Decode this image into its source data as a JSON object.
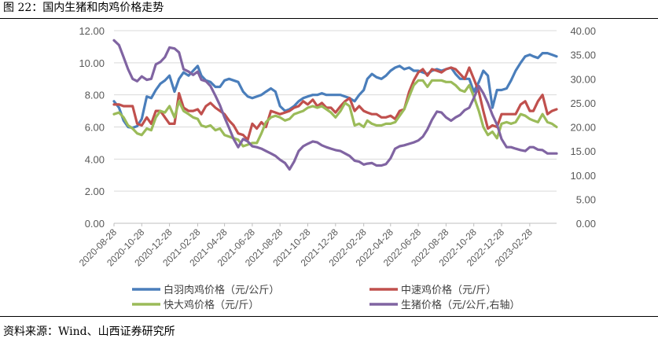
{
  "figure_title": "图 22：国内生猪和肉鸡价格走势",
  "source": "资料来源：Wind、山西证券研究所",
  "chart_data": {
    "type": "line",
    "y_left": {
      "ticks": [
        "12.00",
        "10.00",
        "8.00",
        "6.00",
        "4.00",
        "2.00",
        "0.00"
      ],
      "ylim": [
        0,
        12
      ]
    },
    "y_right": {
      "ticks": [
        "40.00",
        "35.00",
        "30.00",
        "25.00",
        "20.00",
        "15.00",
        "10.00",
        "5.00",
        "0.00"
      ],
      "ylim": [
        0,
        40
      ]
    },
    "x_range": [
      "2020-08-28",
      "2023-04-28"
    ],
    "x_tick_labels": [
      "2020-08-28",
      "2020-10-28",
      "2020-12-28",
      "2021-02-28",
      "2021-04-28",
      "2021-06-28",
      "2021-08-28",
      "2021-10-28",
      "2021-12-28",
      "2022-02-28",
      "2022-04-28",
      "2022-06-28",
      "2022-08-28",
      "2022-10-28",
      "2022-12-28",
      "2023-02-28"
    ],
    "series": [
      {
        "name": "白羽肉鸡价格（元/公斤）",
        "color": "#4a7ebb",
        "axis": "left",
        "x": [
          "2020-08-28",
          "2020-09-08",
          "2020-09-18",
          "2020-09-28",
          "2020-10-08",
          "2020-10-18",
          "2020-10-28",
          "2020-11-08",
          "2020-11-18",
          "2020-11-28",
          "2020-12-08",
          "2020-12-18",
          "2020-12-28",
          "2021-01-08",
          "2021-01-18",
          "2021-01-28",
          "2021-02-08",
          "2021-02-18",
          "2021-02-28",
          "2021-03-08",
          "2021-03-18",
          "2021-03-28",
          "2021-04-08",
          "2021-04-18",
          "2021-04-28",
          "2021-05-08",
          "2021-05-18",
          "2021-05-28",
          "2021-06-08",
          "2021-06-18",
          "2021-06-28",
          "2021-07-08",
          "2021-07-18",
          "2021-07-28",
          "2021-08-08",
          "2021-08-18",
          "2021-08-28",
          "2021-09-08",
          "2021-09-18",
          "2021-09-28",
          "2021-10-08",
          "2021-10-18",
          "2021-10-28",
          "2021-11-08",
          "2021-11-18",
          "2021-11-28",
          "2021-12-08",
          "2021-12-18",
          "2021-12-28",
          "2022-01-08",
          "2022-01-18",
          "2022-01-28",
          "2022-02-08",
          "2022-02-18",
          "2022-02-28",
          "2022-03-08",
          "2022-03-18",
          "2022-03-28",
          "2022-04-08",
          "2022-04-18",
          "2022-04-28",
          "2022-05-08",
          "2022-05-18",
          "2022-05-28",
          "2022-06-08",
          "2022-06-18",
          "2022-06-28",
          "2022-07-08",
          "2022-07-18",
          "2022-07-28",
          "2022-08-08",
          "2022-08-18",
          "2022-08-28",
          "2022-09-08",
          "2022-09-18",
          "2022-09-28",
          "2022-10-08",
          "2022-10-18",
          "2022-10-28",
          "2022-11-08",
          "2022-11-18",
          "2022-11-28",
          "2022-12-08",
          "2022-12-18",
          "2022-12-28",
          "2023-01-08",
          "2023-01-18",
          "2023-01-28",
          "2023-02-08",
          "2023-02-18",
          "2023-02-28",
          "2023-03-08",
          "2023-03-18",
          "2023-03-28",
          "2023-04-08",
          "2023-04-18",
          "2023-04-28"
        ],
        "values": [
          7.6,
          7.2,
          6.4,
          6.0,
          5.95,
          6.05,
          6.5,
          7.9,
          7.8,
          8.3,
          8.7,
          8.9,
          9.2,
          8.2,
          9.0,
          9.4,
          9.2,
          9.5,
          9.8,
          9.2,
          8.9,
          8.8,
          8.5,
          8.5,
          8.9,
          9.0,
          8.9,
          8.8,
          8.2,
          7.9,
          7.8,
          7.9,
          8.0,
          8.2,
          8.4,
          8.2,
          7.3,
          7.0,
          7.1,
          7.3,
          7.6,
          7.8,
          7.9,
          8.0,
          8.0,
          8.1,
          8.0,
          8.0,
          8.0,
          8.0,
          7.9,
          7.8,
          7.6,
          8.0,
          8.3,
          9.0,
          9.3,
          9.1,
          9.0,
          9.2,
          9.5,
          9.7,
          9.8,
          9.6,
          9.7,
          9.5,
          9.5,
          9.4,
          9.3,
          9.5,
          9.6,
          9.5,
          9.6,
          9.7,
          9.3,
          9.0,
          9.0,
          9.0,
          8.2,
          8.8,
          9.5,
          9.2,
          7.2,
          8.3,
          8.3,
          8.4,
          8.9,
          9.5,
          10.0,
          10.4,
          10.5,
          10.4,
          10.3,
          10.6,
          10.6,
          10.5,
          10.4
        ]
      },
      {
        "name": "中速鸡价格（元/斤）",
        "color": "#c0504d",
        "axis": "left",
        "x": [
          "2020-08-28",
          "2020-09-08",
          "2020-09-18",
          "2020-09-28",
          "2020-10-08",
          "2020-10-18",
          "2020-10-28",
          "2020-11-08",
          "2020-11-18",
          "2020-11-28",
          "2020-12-08",
          "2020-12-18",
          "2020-12-28",
          "2021-01-08",
          "2021-01-18",
          "2021-01-28",
          "2021-02-08",
          "2021-02-18",
          "2021-02-28",
          "2021-03-08",
          "2021-03-18",
          "2021-03-28",
          "2021-04-08",
          "2021-04-18",
          "2021-04-28",
          "2021-05-08",
          "2021-05-18",
          "2021-05-28",
          "2021-06-08",
          "2021-06-18",
          "2021-06-28",
          "2021-07-08",
          "2021-07-18",
          "2021-07-28",
          "2021-08-08",
          "2021-08-18",
          "2021-08-28",
          "2021-09-08",
          "2021-09-18",
          "2021-09-28",
          "2021-10-08",
          "2021-10-18",
          "2021-10-28",
          "2021-11-08",
          "2021-11-18",
          "2021-11-28",
          "2021-12-08",
          "2021-12-18",
          "2021-12-28",
          "2022-01-08",
          "2022-01-18",
          "2022-01-28",
          "2022-02-08",
          "2022-02-18",
          "2022-02-28",
          "2022-03-08",
          "2022-03-18",
          "2022-03-28",
          "2022-04-08",
          "2022-04-18",
          "2022-04-28",
          "2022-05-08",
          "2022-05-18",
          "2022-05-28",
          "2022-06-08",
          "2022-06-18",
          "2022-06-28",
          "2022-07-08",
          "2022-07-18",
          "2022-07-28",
          "2022-08-08",
          "2022-08-18",
          "2022-08-28",
          "2022-09-08",
          "2022-09-18",
          "2022-09-28",
          "2022-10-08",
          "2022-10-18",
          "2022-10-28",
          "2022-11-08",
          "2022-11-18",
          "2022-11-28",
          "2022-12-08",
          "2022-12-18",
          "2022-12-28",
          "2023-01-08",
          "2023-01-18",
          "2023-01-28",
          "2023-02-08",
          "2023-02-18",
          "2023-02-28",
          "2023-03-08",
          "2023-03-18",
          "2023-03-28",
          "2023-04-08",
          "2023-04-18",
          "2023-04-28"
        ],
        "values": [
          7.4,
          7.4,
          7.3,
          7.3,
          7.3,
          6.2,
          6.1,
          6.6,
          6.2,
          7.0,
          7.0,
          6.6,
          6.2,
          6.2,
          8.1,
          7.2,
          7.0,
          7.0,
          7.1,
          6.8,
          7.3,
          7.5,
          7.2,
          7.0,
          6.8,
          6.4,
          6.1,
          5.6,
          5.5,
          5.2,
          6.2,
          5.9,
          6.3,
          6.0,
          7.0,
          6.9,
          6.8,
          6.9,
          7.0,
          7.2,
          7.3,
          7.6,
          7.4,
          7.7,
          7.3,
          7.5,
          7.2,
          7.2,
          6.9,
          7.3,
          7.6,
          7.8,
          7.0,
          7.3,
          7.0,
          6.9,
          6.8,
          6.8,
          6.6,
          6.6,
          6.7,
          6.5,
          7.0,
          7.1,
          8.2,
          8.9,
          9.4,
          9.6,
          9.2,
          9.6,
          9.5,
          9.4,
          9.6,
          9.7,
          9.6,
          9.3,
          9.0,
          9.7,
          9.0,
          8.2,
          7.0,
          5.9,
          6.1,
          6.0,
          6.8,
          6.8,
          6.8,
          6.8,
          7.4,
          7.6,
          7.0,
          7.0,
          7.6,
          8.0,
          6.8,
          7.0,
          7.1
        ]
      },
      {
        "name": "快大鸡价格（元/斤）",
        "color": "#9bbb59",
        "axis": "left",
        "x": [
          "2020-08-28",
          "2020-09-08",
          "2020-09-18",
          "2020-09-28",
          "2020-10-08",
          "2020-10-18",
          "2020-10-28",
          "2020-11-08",
          "2020-11-18",
          "2020-11-28",
          "2020-12-08",
          "2020-12-18",
          "2020-12-28",
          "2021-01-08",
          "2021-01-18",
          "2021-01-28",
          "2021-02-08",
          "2021-02-18",
          "2021-02-28",
          "2021-03-08",
          "2021-03-18",
          "2021-03-28",
          "2021-04-08",
          "2021-04-18",
          "2021-04-28",
          "2021-05-08",
          "2021-05-18",
          "2021-05-28",
          "2021-06-08",
          "2021-06-18",
          "2021-06-28",
          "2021-07-08",
          "2021-07-18",
          "2021-07-28",
          "2021-08-08",
          "2021-08-18",
          "2021-08-28",
          "2021-09-08",
          "2021-09-18",
          "2021-09-28",
          "2021-10-08",
          "2021-10-18",
          "2021-10-28",
          "2021-11-08",
          "2021-11-18",
          "2021-11-28",
          "2021-12-08",
          "2021-12-18",
          "2021-12-28",
          "2022-01-08",
          "2022-01-18",
          "2022-01-28",
          "2022-02-08",
          "2022-02-18",
          "2022-02-28",
          "2022-03-08",
          "2022-03-18",
          "2022-03-28",
          "2022-04-08",
          "2022-04-18",
          "2022-04-28",
          "2022-05-08",
          "2022-05-18",
          "2022-05-28",
          "2022-06-08",
          "2022-06-18",
          "2022-06-28",
          "2022-07-08",
          "2022-07-18",
          "2022-07-28",
          "2022-08-08",
          "2022-08-18",
          "2022-08-28",
          "2022-09-08",
          "2022-09-18",
          "2022-09-28",
          "2022-10-08",
          "2022-10-18",
          "2022-10-28",
          "2022-11-08",
          "2022-11-18",
          "2022-11-28",
          "2022-12-08",
          "2022-12-18",
          "2022-12-28",
          "2023-01-08",
          "2023-01-18",
          "2023-01-28",
          "2023-02-08",
          "2023-02-18",
          "2023-02-28",
          "2023-03-08",
          "2023-03-18",
          "2023-03-28",
          "2023-04-08",
          "2023-04-18",
          "2023-04-28"
        ],
        "values": [
          6.8,
          6.9,
          6.6,
          6.1,
          5.9,
          5.6,
          5.5,
          5.9,
          5.8,
          6.6,
          7.0,
          6.9,
          7.3,
          6.6,
          7.6,
          7.0,
          6.8,
          6.6,
          6.5,
          6.1,
          6.0,
          6.1,
          5.8,
          5.9,
          5.5,
          5.4,
          5.3,
          5.2,
          4.8,
          4.9,
          5.0,
          5.0,
          5.6,
          6.3,
          6.6,
          6.7,
          6.6,
          6.4,
          6.5,
          6.8,
          6.9,
          7.0,
          7.2,
          7.3,
          7.2,
          7.3,
          7.1,
          6.9,
          6.6,
          7.0,
          7.5,
          7.3,
          6.1,
          6.2,
          6.0,
          6.4,
          6.2,
          6.1,
          6.1,
          6.2,
          6.2,
          6.3,
          6.7,
          7.1,
          7.9,
          8.6,
          8.9,
          8.9,
          8.5,
          8.9,
          8.9,
          8.9,
          8.8,
          8.8,
          8.6,
          8.3,
          8.2,
          8.6,
          7.9,
          7.0,
          6.0,
          5.5,
          5.7,
          5.3,
          6.2,
          6.3,
          6.2,
          6.3,
          6.8,
          6.7,
          6.5,
          6.4,
          6.3,
          6.8,
          6.3,
          6.2,
          6.0
        ]
      },
      {
        "name": "生猪价格（元/公斤,右轴）",
        "color": "#8064a2",
        "axis": "right",
        "x": [
          "2020-08-28",
          "2020-09-08",
          "2020-09-18",
          "2020-09-28",
          "2020-10-08",
          "2020-10-18",
          "2020-10-28",
          "2020-11-08",
          "2020-11-18",
          "2020-11-28",
          "2020-12-08",
          "2020-12-18",
          "2020-12-28",
          "2021-01-08",
          "2021-01-18",
          "2021-01-28",
          "2021-02-08",
          "2021-02-18",
          "2021-02-28",
          "2021-03-08",
          "2021-03-18",
          "2021-03-28",
          "2021-04-08",
          "2021-04-18",
          "2021-04-28",
          "2021-05-08",
          "2021-05-18",
          "2021-05-28",
          "2021-06-08",
          "2021-06-18",
          "2021-06-28",
          "2021-07-08",
          "2021-07-18",
          "2021-07-28",
          "2021-08-08",
          "2021-08-18",
          "2021-08-28",
          "2021-09-08",
          "2021-09-18",
          "2021-09-28",
          "2021-10-08",
          "2021-10-18",
          "2021-10-28",
          "2021-11-08",
          "2021-11-18",
          "2021-11-28",
          "2021-12-08",
          "2021-12-18",
          "2021-12-28",
          "2022-01-08",
          "2022-01-18",
          "2022-01-28",
          "2022-02-08",
          "2022-02-18",
          "2022-02-28",
          "2022-03-08",
          "2022-03-18",
          "2022-03-28",
          "2022-04-08",
          "2022-04-18",
          "2022-04-28",
          "2022-05-08",
          "2022-05-18",
          "2022-05-28",
          "2022-06-08",
          "2022-06-18",
          "2022-06-28",
          "2022-07-08",
          "2022-07-18",
          "2022-07-28",
          "2022-08-08",
          "2022-08-18",
          "2022-08-28",
          "2022-09-08",
          "2022-09-18",
          "2022-09-28",
          "2022-10-08",
          "2022-10-18",
          "2022-10-28",
          "2022-11-08",
          "2022-11-18",
          "2022-11-28",
          "2022-12-08",
          "2022-12-18",
          "2022-12-28",
          "2023-01-08",
          "2023-01-18",
          "2023-01-28",
          "2023-02-08",
          "2023-02-18",
          "2023-02-28",
          "2023-03-08",
          "2023-03-18",
          "2023-03-28",
          "2023-04-08",
          "2023-04-18",
          "2023-04-28"
        ],
        "values": [
          38.0,
          37.0,
          34.5,
          32.0,
          30.0,
          29.5,
          30.5,
          29.8,
          30.0,
          33.0,
          33.5,
          34.5,
          36.5,
          36.3,
          35.5,
          32.0,
          31.5,
          30.8,
          31.5,
          29.8,
          29.5,
          28.5,
          26.5,
          24.5,
          22.0,
          19.8,
          17.5,
          15.8,
          17.5,
          17.0,
          16.0,
          15.8,
          15.5,
          15.0,
          14.5,
          14.0,
          13.2,
          12.5,
          11.2,
          12.8,
          15.0,
          16.0,
          16.5,
          17.0,
          16.8,
          16.2,
          15.8,
          15.5,
          15.2,
          15.0,
          14.5,
          14.0,
          13.0,
          12.8,
          12.2,
          12.4,
          12.5,
          12.0,
          12.0,
          12.3,
          13.5,
          15.5,
          16.0,
          16.2,
          16.5,
          16.8,
          17.2,
          18.0,
          19.5,
          21.5,
          23.2,
          23.0,
          22.0,
          21.3,
          22.0,
          22.5,
          23.5,
          24.0,
          26.0,
          28.5,
          27.0,
          25.0,
          22.5,
          20.5,
          17.5,
          15.8,
          15.8,
          15.5,
          15.2,
          15.0,
          15.8,
          15.8,
          15.3,
          15.2,
          14.5,
          14.5,
          14.5
        ]
      }
    ]
  }
}
